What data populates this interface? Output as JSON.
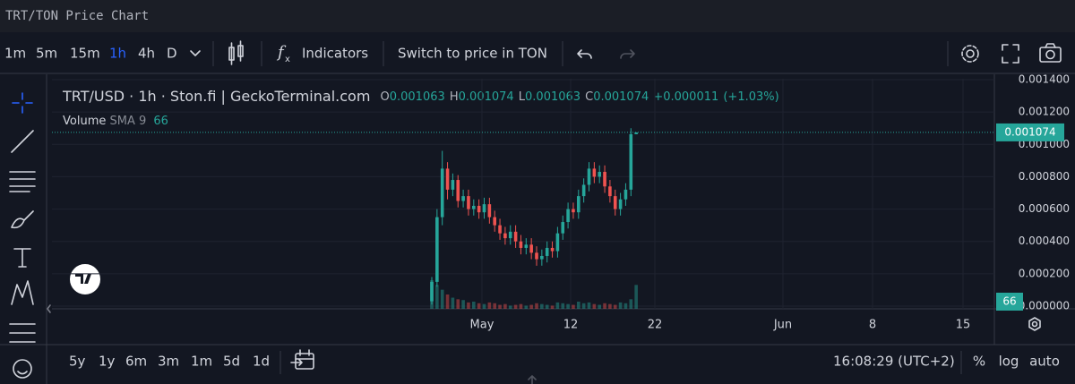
{
  "header": {
    "title": "TRT/TON Price Chart"
  },
  "toolbar": {
    "intervals": [
      "1m",
      "5m",
      "15m",
      "1h",
      "4h",
      "D"
    ],
    "active_interval": "1h",
    "indicators": "Indicators",
    "switch": "Switch to price in TON"
  },
  "legend": {
    "symbol": "TRT/USD · 1h · Ston.fi | GeckoTerminal.com",
    "open_label": "O",
    "high_label": "H",
    "low_label": "L",
    "close_label": "C",
    "change": "+0.000011",
    "change_percent": "(+1.03%)",
    "volume": "Volume",
    "volume_indicator": "SMA 9",
    "volume_value": "66"
  },
  "chart_data": {
    "type": "candlestick",
    "open": [
      3e-05,
      0.00015,
      0.00055,
      0.00085,
      0.00072,
      0.00078,
      0.00065,
      0.00068,
      0.0006,
      0.00062,
      0.00058,
      0.00063,
      0.00055,
      0.0005,
      0.00045,
      0.00042,
      0.00046,
      0.0004,
      0.00036,
      0.00038,
      0.00033,
      0.00029,
      0.00031,
      0.00036,
      0.00034,
      0.00045,
      0.00052,
      0.0006,
      0.00058,
      0.00068,
      0.00075,
      0.00085,
      0.0008,
      0.00083,
      0.00074,
      0.00068,
      0.0006,
      0.00066,
      0.00072,
      0.001063
    ],
    "high": [
      0.00018,
      0.0006,
      0.00096,
      0.00089,
      0.00082,
      0.00081,
      0.00072,
      0.00072,
      0.00066,
      0.00066,
      0.00067,
      0.00067,
      0.00059,
      0.00054,
      0.00049,
      0.0005,
      0.0005,
      0.00044,
      0.00042,
      0.00042,
      0.00037,
      0.00035,
      0.0004,
      0.0004,
      0.00049,
      0.00056,
      0.00064,
      0.00064,
      0.00072,
      0.00079,
      0.00089,
      0.00089,
      0.00087,
      0.00087,
      0.00078,
      0.00072,
      0.0007,
      0.00076,
      0.0011,
      0.001074
    ],
    "low": [
      1e-05,
      0.00012,
      0.0005,
      0.00066,
      0.00068,
      0.00061,
      0.00061,
      0.00056,
      0.00056,
      0.00054,
      0.00054,
      0.00051,
      0.00046,
      0.00041,
      0.00038,
      0.00038,
      0.00036,
      0.00032,
      0.00032,
      0.00029,
      0.00025,
      0.00025,
      0.00027,
      0.0003,
      0.0003,
      0.00041,
      0.00048,
      0.00054,
      0.00054,
      0.00064,
      0.00071,
      0.00076,
      0.00076,
      0.0007,
      0.00064,
      0.00056,
      0.00056,
      0.00062,
      0.00068,
      0.001063
    ],
    "close": [
      0.00015,
      0.00055,
      0.00085,
      0.00072,
      0.00078,
      0.00065,
      0.00068,
      0.0006,
      0.00062,
      0.00058,
      0.00063,
      0.00055,
      0.0005,
      0.00045,
      0.00042,
      0.00046,
      0.0004,
      0.00036,
      0.00038,
      0.00033,
      0.00029,
      0.00031,
      0.00036,
      0.00034,
      0.00045,
      0.00052,
      0.0006,
      0.00058,
      0.00068,
      0.00075,
      0.00085,
      0.0008,
      0.00083,
      0.00074,
      0.00068,
      0.0006,
      0.00066,
      0.00072,
      0.001063,
      0.001074
    ],
    "volume": [
      180,
      150,
      120,
      90,
      70,
      60,
      55,
      40,
      45,
      35,
      30,
      40,
      35,
      25,
      30,
      20,
      25,
      30,
      20,
      25,
      35,
      30,
      25,
      20,
      40,
      35,
      30,
      25,
      45,
      35,
      40,
      30,
      25,
      35,
      30,
      25,
      40,
      35,
      60,
      150
    ],
    "up_color": "#26a69a",
    "down_color": "#ef5350",
    "ylim": [
      0,
      0.0014
    ],
    "yticks": [
      {
        "value": 0,
        "label": "0.000000"
      },
      {
        "value": 0.0002,
        "label": "0.000200"
      },
      {
        "value": 0.0004,
        "label": "0.000400"
      },
      {
        "value": 0.0006,
        "label": "0.000600"
      },
      {
        "value": 0.0008,
        "label": "0.000800"
      },
      {
        "value": 0.001,
        "label": "0.001000"
      },
      {
        "value": 0.0012,
        "label": "0.001200"
      },
      {
        "value": 0.0014,
        "label": "0.001400"
      }
    ],
    "xticks": [
      "May",
      "12",
      "22",
      "Jun",
      "8",
      "15"
    ],
    "grid": true
  },
  "range_buttons": [
    "5y",
    "1y",
    "6m",
    "3m",
    "1m",
    "5d",
    "1d"
  ],
  "clock": "16:08:29 (UTC+2)",
  "scale_options": [
    "%",
    "log",
    "auto"
  ]
}
